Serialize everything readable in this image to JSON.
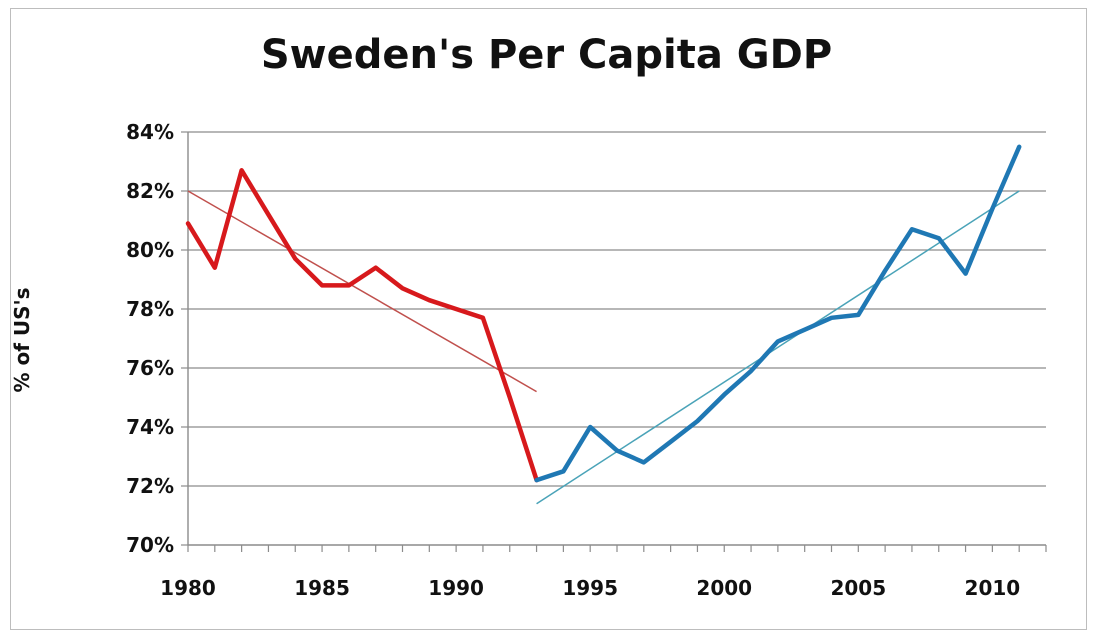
{
  "chart_data": {
    "type": "line",
    "title": "Sweden's Per Capita GDP",
    "xlabel": "",
    "ylabel": "% of US's",
    "xlim": [
      1980,
      2012
    ],
    "ylim": [
      70,
      84
    ],
    "x_ticks": [
      1980,
      1985,
      1990,
      1995,
      2000,
      2005,
      2010
    ],
    "y_ticks": [
      70,
      72,
      74,
      76,
      78,
      80,
      82,
      84
    ],
    "y_tick_labels": [
      "70%",
      "72%",
      "74%",
      "76%",
      "78%",
      "80%",
      "82%",
      "84%"
    ],
    "grid": "horizontal",
    "legend": "none",
    "series": [
      {
        "color": "#d7191c",
        "x": [
          1980,
          1981,
          1982,
          1983,
          1984,
          1985,
          1986,
          1987,
          1988,
          1989,
          1990,
          1991,
          1992,
          1993
        ],
        "y": [
          80.9,
          79.4,
          82.7,
          81.2,
          79.7,
          78.8,
          78.8,
          79.4,
          78.7,
          78.3,
          78.0,
          77.7,
          75.0,
          72.2
        ]
      },
      {
        "color": "#1f78b4",
        "x": [
          1993,
          1994,
          1995,
          1996,
          1997,
          1998,
          1999,
          2000,
          2001,
          2002,
          2003,
          2004,
          2005,
          2006,
          2007,
          2008,
          2009,
          2010,
          2011
        ],
        "y": [
          72.2,
          72.5,
          74.0,
          73.2,
          72.8,
          73.5,
          74.2,
          75.1,
          75.9,
          76.9,
          77.3,
          77.7,
          77.8,
          79.3,
          80.7,
          80.4,
          79.2,
          81.4,
          83.5
        ]
      }
    ],
    "trendlines": [
      {
        "color": "#c0504d",
        "x": [
          1980,
          1993
        ],
        "y": [
          82.0,
          75.2
        ]
      },
      {
        "color": "#4aa3b8",
        "x": [
          1993,
          2011
        ],
        "y": [
          71.4,
          82.0
        ]
      }
    ]
  }
}
